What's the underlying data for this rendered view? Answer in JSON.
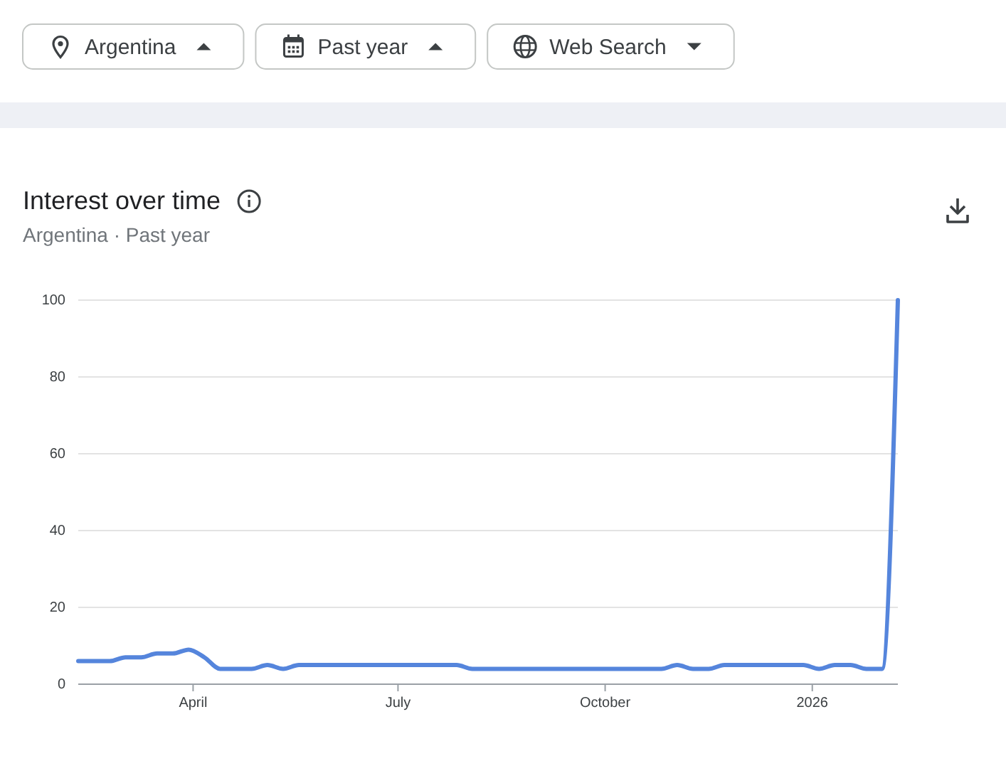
{
  "chart_data": {
    "type": "line",
    "title": "Interest over time",
    "subtitle": "Argentina · Past year",
    "annotations": [
      "Argentina",
      "Past year",
      "Web Search"
    ],
    "x": [
      "2025-02-09",
      "2025-02-16",
      "2025-02-23",
      "2025-03-02",
      "2025-03-09",
      "2025-03-16",
      "2025-03-23",
      "2025-03-30",
      "2025-04-06",
      "2025-04-13",
      "2025-04-20",
      "2025-04-27",
      "2025-05-04",
      "2025-05-11",
      "2025-05-18",
      "2025-05-25",
      "2025-06-01",
      "2025-06-08",
      "2025-06-15",
      "2025-06-22",
      "2025-06-29",
      "2025-07-06",
      "2025-07-13",
      "2025-07-20",
      "2025-07-27",
      "2025-08-03",
      "2025-08-10",
      "2025-08-17",
      "2025-08-24",
      "2025-08-31",
      "2025-09-07",
      "2025-09-14",
      "2025-09-21",
      "2025-09-28",
      "2025-10-05",
      "2025-10-12",
      "2025-10-19",
      "2025-10-26",
      "2025-11-02",
      "2025-11-09",
      "2025-11-16",
      "2025-11-23",
      "2025-11-30",
      "2025-12-07",
      "2025-12-14",
      "2025-12-21",
      "2025-12-28",
      "2026-01-04",
      "2026-01-11",
      "2026-01-18",
      "2026-01-25",
      "2026-02-01",
      "2026-02-08"
    ],
    "series": [
      {
        "color": "#5585dc",
        "values": [
          6,
          6,
          6,
          7,
          7,
          8,
          8,
          9,
          7,
          4,
          4,
          4,
          5,
          4,
          5,
          5,
          5,
          5,
          5,
          5,
          5,
          5,
          5,
          5,
          5,
          4,
          4,
          4,
          4,
          4,
          4,
          4,
          4,
          4,
          4,
          4,
          4,
          4,
          5,
          4,
          4,
          5,
          5,
          5,
          5,
          5,
          5,
          4,
          5,
          5,
          4,
          4,
          100
        ]
      }
    ],
    "xlim": [
      "2025-02-09",
      "2026-02-08"
    ],
    "xticks": [
      {
        "value": "2025-04-01",
        "label": "April"
      },
      {
        "value": "2025-07-01",
        "label": "July"
      },
      {
        "value": "2025-10-01",
        "label": "October"
      },
      {
        "value": "2026-01-01",
        "label": "2026"
      }
    ],
    "ylim": [
      0,
      100
    ],
    "yticks": [
      0,
      20,
      40,
      60,
      80,
      100
    ],
    "grid": "y",
    "line_style": "solid"
  }
}
